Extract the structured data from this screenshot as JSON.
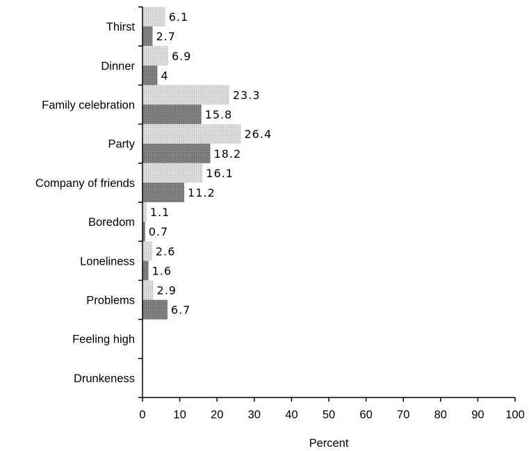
{
  "chart_data": {
    "type": "bar",
    "orientation": "horizontal",
    "categories": [
      "Thirst",
      "Dinner",
      "Family celebration",
      "Party",
      "Company of friends",
      "Boredom",
      "Loneliness",
      "Problems",
      "Feeling high",
      "Drunkeness"
    ],
    "series": [
      {
        "values": [
          6.1,
          6.9,
          23.3,
          26.4,
          16.1,
          1.1,
          2.6,
          2.9,
          null,
          null
        ],
        "color": "#cfcfcf",
        "pattern": "light-dotted"
      },
      {
        "values": [
          2.7,
          4,
          15.8,
          18.2,
          11.2,
          0.7,
          1.6,
          6.7,
          null,
          null
        ],
        "color": "#7a7a7a",
        "pattern": "dark-dotted"
      }
    ],
    "data_labels": [
      [
        "6.1",
        "6.9",
        "23.3",
        "26.4",
        "16.1",
        "1.1",
        "2.6",
        "2.9",
        "",
        ""
      ],
      [
        "2.7",
        "4",
        "15.8",
        "18.2",
        "11.2",
        "0.7",
        "1.6",
        "6.7",
        "",
        ""
      ]
    ],
    "x_ticks": [
      "0",
      "10",
      "20",
      "30",
      "40",
      "50",
      "60",
      "70",
      "80",
      "90",
      "100"
    ],
    "xlim": [
      0,
      100
    ],
    "xlabel": "Percent",
    "ylabel": "",
    "title": "",
    "grid": false,
    "legend": "none"
  }
}
